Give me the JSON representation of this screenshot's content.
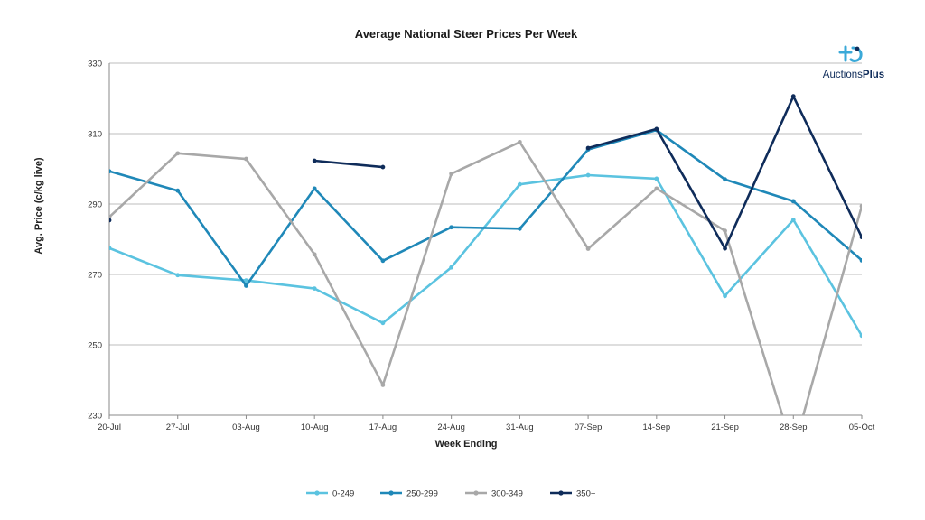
{
  "logo": {
    "text_a": "Auctions",
    "text_b": "Plus",
    "icon_color": "#3aa9d8"
  },
  "chart_data": {
    "type": "line",
    "title": "Average National Steer Prices Per Week",
    "xlabel": "Week Ending",
    "ylabel": "Avg. Price (c/kg live)",
    "ylim": [
      230,
      330
    ],
    "yticks": [
      230,
      250,
      270,
      290,
      310,
      330
    ],
    "grid": true,
    "legend_position": "bottom",
    "categories": [
      "20-Jul",
      "27-Jul",
      "03-Aug",
      "10-Aug",
      "17-Aug",
      "24-Aug",
      "31-Aug",
      "07-Sep",
      "14-Sep",
      "21-Sep",
      "28-Sep",
      "05-Oct"
    ],
    "series": [
      {
        "name": "0-249",
        "color": "#5bc3e0",
        "values": [
          277.5,
          269.8,
          268.3,
          266,
          256.2,
          272,
          295.6,
          298.2,
          297.2,
          263.9,
          285.5,
          252.6
        ]
      },
      {
        "name": "250-299",
        "color": "#1f88b8",
        "values": [
          299.3,
          293.8,
          266.8,
          294.4,
          273.9,
          283.4,
          283,
          305.5,
          311,
          297,
          290.8,
          274
        ]
      },
      {
        "name": "300-349",
        "color": "#a8a8a8",
        "values": [
          286.3,
          304.4,
          302.8,
          275.7,
          238.6,
          298.6,
          307.6,
          277.3,
          294.4,
          282.4,
          220,
          289.4
        ]
      },
      {
        "name": "350+",
        "color": "#0f2c5a",
        "values": [
          285.4,
          null,
          null,
          302.3,
          300.5,
          null,
          null,
          305.9,
          311.3,
          277.4,
          320.6,
          280.6
        ]
      }
    ]
  }
}
